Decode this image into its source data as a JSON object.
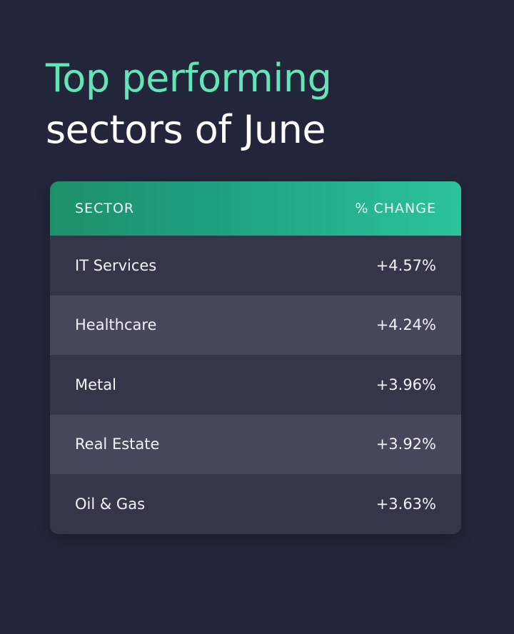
{
  "heading": {
    "line1": "Top performing",
    "line2": "sectors of June"
  },
  "table": {
    "headers": [
      "SECTOR",
      "% CHANGE"
    ],
    "rows": [
      {
        "sector": "IT Services",
        "change": "+4.57%"
      },
      {
        "sector": "Healthcare",
        "change": "+4.24%"
      },
      {
        "sector": "Metal",
        "change": "+3.96%"
      },
      {
        "sector": "Real Estate",
        "change": "+3.92%"
      },
      {
        "sector": "Oil & Gas",
        "change": "+3.63%"
      }
    ]
  },
  "colors": {
    "background": "#23263a",
    "accent": "#62e6b8",
    "header_gradient_start": "#1e8f6a",
    "header_gradient_end": "#2cc39a"
  }
}
